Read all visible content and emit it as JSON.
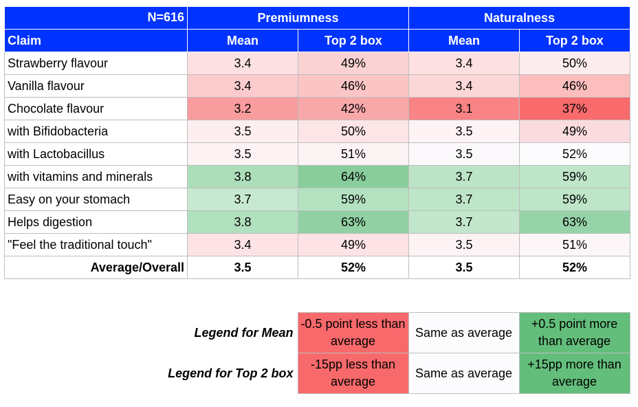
{
  "sample": "N=616",
  "groups": [
    "Premiumness",
    "Naturalness"
  ],
  "columns": {
    "claim": "Claim",
    "mean": "Mean",
    "top2": "Top 2 box"
  },
  "colors": {
    "header": "#0033ff",
    "low": "#f8696b",
    "neutral": "#fcfcff",
    "high": "#63be7b"
  },
  "rows": [
    {
      "claim": "Strawberry flavour",
      "p_mean": "3.4",
      "p_top2": "49%",
      "n_mean": "3.4",
      "n_top2": "50%",
      "bg": [
        "#fde1e2",
        "#fbd2d3",
        "#fde1e2",
        "#fcecee"
      ]
    },
    {
      "claim": "Vanilla flavour",
      "p_mean": "3.4",
      "p_top2": "46%",
      "n_mean": "3.4",
      "n_top2": "46%",
      "bg": [
        "#fbcbcd",
        "#fbc5c6",
        "#fcd7d8",
        "#fbbdbe"
      ]
    },
    {
      "claim": "Chocolate flavour",
      "p_mean": "3.2",
      "p_top2": "42%",
      "n_mean": "3.1",
      "n_top2": "37%",
      "bg": [
        "#f99c9e",
        "#f9a8aa",
        "#f98385",
        "#f86a6c"
      ]
    },
    {
      "claim": "with Bifidobacteria",
      "p_mean": "3.5",
      "p_top2": "50%",
      "n_mean": "3.5",
      "n_top2": "49%",
      "bg": [
        "#fdeef0",
        "#fce5e6",
        "#fdf2f4",
        "#fbdcde"
      ]
    },
    {
      "claim": "with Lactobacillus",
      "p_mean": "3.5",
      "p_top2": "51%",
      "n_mean": "3.5",
      "n_top2": "52%",
      "bg": [
        "#fdf3f5",
        "#fcf3f5",
        "#fcf9fc",
        "#fcfcff"
      ]
    },
    {
      "claim": "with vitamins and minerals",
      "p_mean": "3.8",
      "p_top2": "64%",
      "n_mean": "3.7",
      "n_top2": "59%",
      "bg": [
        "#addeba",
        "#88cd9b",
        "#bce5c7",
        "#bfe6c9"
      ]
    },
    {
      "claim": "Easy on your stomach",
      "p_mean": "3.7",
      "p_top2": "59%",
      "n_mean": "3.7",
      "n_top2": "59%",
      "bg": [
        "#c7e9d1",
        "#b4e1c0",
        "#bee5c8",
        "#bee5c8"
      ]
    },
    {
      "claim": "Helps digestion",
      "p_mean": "3.8",
      "p_top2": "63%",
      "n_mean": "3.7",
      "n_top2": "63%",
      "bg": [
        "#b1e0be",
        "#91d0a2",
        "#c2e7cc",
        "#97d3a8"
      ]
    },
    {
      "claim": "\"Feel the traditional touch\"",
      "p_mean": "3.4",
      "p_top2": "49%",
      "n_mean": "3.5",
      "n_top2": "51%",
      "bg": [
        "#fde3e5",
        "#fde3e5",
        "#fdf3f5",
        "#fcf6f8"
      ]
    }
  ],
  "average": {
    "claim": "Average/Overall",
    "p_mean": "3.5",
    "p_top2": "52%",
    "n_mean": "3.5",
    "n_top2": "52%"
  },
  "legend": [
    {
      "label": "Legend for Mean",
      "low": "-0.5 point less than average",
      "same": "Same as average",
      "high": "+0.5 point more than average"
    },
    {
      "label": "Legend for Top 2 box",
      "low": "-15pp less than average",
      "same": "Same as average",
      "high": "+15pp more than average"
    }
  ],
  "chart_data": {
    "type": "table",
    "title": "",
    "categories": [
      "Strawberry flavour",
      "Vanilla flavour",
      "Chocolate flavour",
      "with Bifidobacteria",
      "with Lactobacillus",
      "with vitamins and minerals",
      "Easy on your stomach",
      "Helps digestion",
      "\"Feel the traditional touch\"",
      "Average/Overall"
    ],
    "series": [
      {
        "name": "Premiumness Mean",
        "values": [
          3.4,
          3.4,
          3.2,
          3.5,
          3.5,
          3.8,
          3.7,
          3.8,
          3.4,
          3.5
        ]
      },
      {
        "name": "Premiumness Top 2 box",
        "values": [
          49,
          46,
          42,
          50,
          51,
          64,
          59,
          63,
          49,
          52
        ]
      },
      {
        "name": "Naturalness Mean",
        "values": [
          3.4,
          3.4,
          3.1,
          3.5,
          3.5,
          3.7,
          3.7,
          3.7,
          3.5,
          3.5
        ]
      },
      {
        "name": "Naturalness Top 2 box",
        "values": [
          50,
          46,
          37,
          49,
          52,
          59,
          59,
          63,
          51,
          52
        ]
      }
    ]
  }
}
